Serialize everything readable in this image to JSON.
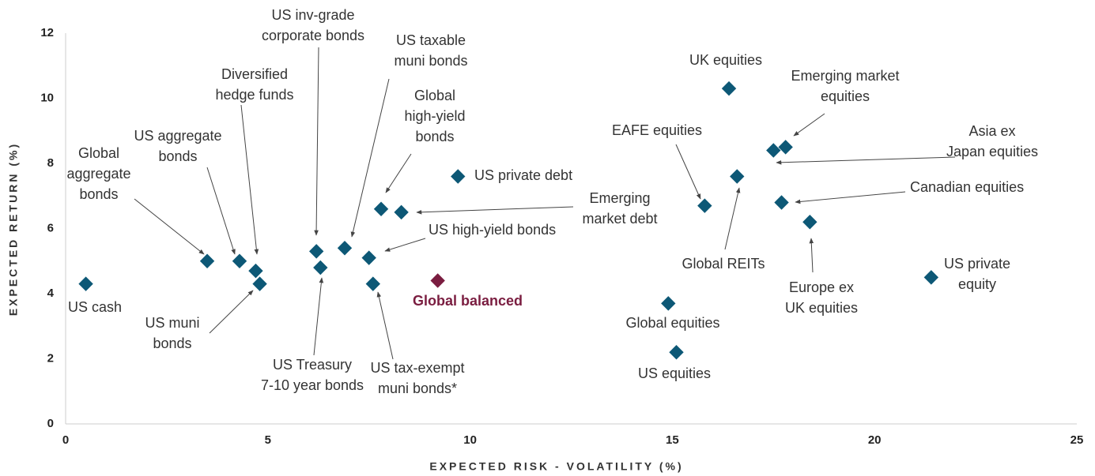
{
  "chart_data": {
    "type": "scatter",
    "xlabel": "EXPECTED RISK - VOLATILITY (%)",
    "ylabel": "EXPECTED RETURN (%)",
    "xlim": [
      0,
      25
    ],
    "xticks": [
      0,
      5,
      10,
      15,
      20,
      25
    ],
    "ylim": [
      0,
      12
    ],
    "yticks": [
      0,
      2,
      4,
      6,
      8,
      10,
      12
    ],
    "x": [
      0.5,
      3.5,
      4.3,
      4.7,
      4.8,
      6.2,
      6.3,
      6.9,
      7.5,
      7.6,
      7.8,
      8.3,
      9.7,
      9.2,
      16.4,
      17.8,
      17.5,
      15.8,
      16.6,
      17.7,
      18.4,
      21.4,
      14.9,
      15.1
    ],
    "values": [
      4.3,
      5.0,
      5.0,
      4.7,
      4.3,
      5.3,
      4.8,
      5.4,
      5.1,
      4.3,
      6.6,
      6.5,
      7.6,
      4.4,
      10.3,
      8.5,
      8.4,
      6.7,
      7.6,
      6.8,
      6.2,
      4.5,
      3.7,
      2.2
    ],
    "colors": [
      "#0d5876",
      "#0d5876",
      "#0d5876",
      "#0d5876",
      "#0d5876",
      "#0d5876",
      "#0d5876",
      "#0d5876",
      "#0d5876",
      "#0d5876",
      "#0d5876",
      "#0d5876",
      "#0d5876",
      "#7a1d40",
      "#0d5876",
      "#0d5876",
      "#0d5876",
      "#0d5876",
      "#0d5876",
      "#0d5876",
      "#0d5876",
      "#0d5876",
      "#0d5876",
      "#0d5876"
    ],
    "labels": [
      [
        "US cash"
      ],
      [
        "Global",
        "aggregate",
        "bonds"
      ],
      [
        "US aggregate",
        "bonds"
      ],
      [
        "Diversified",
        "hedge funds"
      ],
      [
        "US muni",
        "bonds"
      ],
      [
        "US inv-grade",
        "corporate bonds"
      ],
      [
        "US Treasury",
        "7-10 year bonds"
      ],
      [
        "US taxable",
        "muni bonds"
      ],
      [
        "US high-yield bonds"
      ],
      [
        "US tax-exempt",
        "muni bonds*"
      ],
      [
        "Global",
        "high-yield",
        "bonds"
      ],
      [
        "Emerging",
        "market debt"
      ],
      [
        "US private debt"
      ],
      [
        "Global balanced"
      ],
      [
        "UK equities"
      ],
      [
        "Emerging market",
        "equities"
      ],
      [
        "Asia ex",
        "Japan equities"
      ],
      [
        "EAFE equities"
      ],
      [
        "Global REITs"
      ],
      [
        "Canadian equities"
      ],
      [
        "Europe ex",
        "UK equities"
      ],
      [
        "US private",
        "equity"
      ],
      [
        "Global equities"
      ],
      [
        "US equities"
      ]
    ]
  }
}
